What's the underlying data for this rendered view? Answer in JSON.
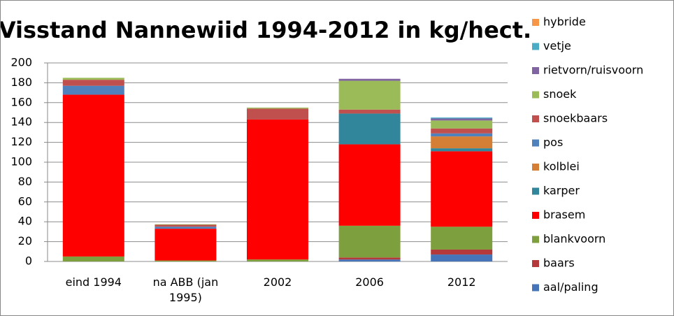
{
  "chart_data": {
    "type": "stacked_bar",
    "title": "Visstand Nannewiid 1994-2012 in kg/hect.",
    "categories": [
      "eind 1994",
      "na ABB (jan 1995)",
      "2002",
      "2006",
      "2012"
    ],
    "series": [
      {
        "name": "aal/paling",
        "color": "#4674b8",
        "values": [
          0,
          0,
          0,
          2,
          7
        ]
      },
      {
        "name": "baars",
        "color": "#b3393b",
        "values": [
          0,
          0,
          0,
          2,
          5
        ]
      },
      {
        "name": "blankvoorn",
        "color": "#7e9f3e",
        "values": [
          5,
          1,
          2,
          32,
          23
        ]
      },
      {
        "name": "brasem",
        "color": "#ff0000",
        "values": [
          163,
          32,
          141,
          82,
          76
        ]
      },
      {
        "name": "karper",
        "color": "#31869b",
        "values": [
          0,
          0,
          0,
          31,
          3
        ]
      },
      {
        "name": "kolblei",
        "color": "#d57f36",
        "values": [
          0,
          0,
          0,
          0,
          12
        ]
      },
      {
        "name": "pos",
        "color": "#4f81bd",
        "values": [
          9,
          2,
          0,
          0,
          3
        ]
      },
      {
        "name": "snoekbaars",
        "color": "#c0504d",
        "values": [
          6,
          2,
          11,
          4,
          5
        ]
      },
      {
        "name": "snoek",
        "color": "#9bbb59",
        "values": [
          2,
          0.5,
          1,
          29,
          8
        ]
      },
      {
        "name": "rietvorn/ruisvoorn",
        "color": "#8064a2",
        "values": [
          0,
          0,
          0,
          2,
          2
        ]
      },
      {
        "name": "vetje",
        "color": "#4bacc6",
        "values": [
          0,
          0,
          0,
          0,
          1
        ]
      },
      {
        "name": "hybride",
        "color": "#f79646",
        "values": [
          0,
          0,
          0,
          0,
          0
        ]
      }
    ],
    "ylim": [
      0,
      200
    ],
    "yticks": [
      0,
      20,
      40,
      60,
      80,
      100,
      120,
      140,
      160,
      180,
      200
    ],
    "grid": true
  }
}
